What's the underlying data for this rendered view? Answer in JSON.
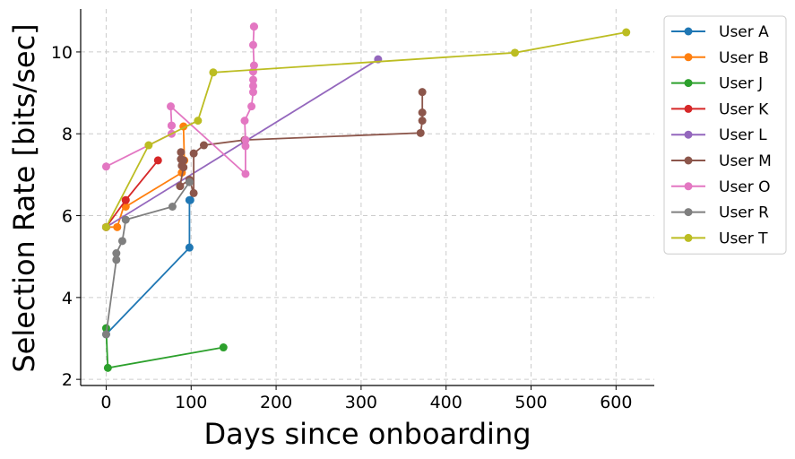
{
  "chart_data": {
    "type": "line",
    "xlabel": "Days since onboarding",
    "ylabel": "Selection Rate [bits/sec]",
    "xlim": [
      -30,
      645
    ],
    "ylim": [
      1.85,
      11.05
    ],
    "x_ticks": [
      0,
      100,
      200,
      300,
      400,
      500,
      600
    ],
    "y_ticks": [
      2,
      4,
      6,
      8,
      10
    ],
    "grid": true,
    "legend_position": "outside-right",
    "series": [
      {
        "name": "User A",
        "color": "#1f77b4",
        "x": [
          0,
          98,
          98,
          99
        ],
        "y": [
          3.1,
          5.22,
          6.38,
          6.38
        ]
      },
      {
        "name": "User B",
        "color": "#ff7f0e",
        "x": [
          0,
          13,
          23,
          23,
          89,
          91,
          92,
          91
        ],
        "y": [
          5.72,
          5.72,
          6.38,
          6.22,
          7.05,
          7.35,
          7.35,
          8.18
        ]
      },
      {
        "name": "User J",
        "color": "#2ca02c",
        "x": [
          0,
          2,
          138
        ],
        "y": [
          3.25,
          2.28,
          2.78
        ]
      },
      {
        "name": "User K",
        "color": "#d62728",
        "x": [
          0,
          23,
          61
        ],
        "y": [
          5.72,
          6.38,
          7.35
        ]
      },
      {
        "name": "User L",
        "color": "#9467bd",
        "x": [
          0,
          320
        ],
        "y": [
          5.72,
          9.82
        ]
      },
      {
        "name": "User M",
        "color": "#8c564b",
        "x": [
          88,
          88,
          89,
          90,
          91,
          91,
          87,
          98,
          103,
          103,
          115,
          163,
          370,
          372,
          372,
          372
        ],
        "y": [
          7.55,
          7.38,
          7.22,
          7.35,
          7.35,
          7.18,
          6.72,
          6.88,
          6.55,
          7.52,
          7.72,
          7.85,
          8.02,
          8.32,
          8.52,
          9.02
        ]
      },
      {
        "name": "User O",
        "color": "#e377c2",
        "x": [
          0,
          77,
          77,
          77,
          76,
          164,
          164,
          164,
          163,
          171,
          173,
          173,
          173,
          173,
          174,
          173,
          174,
          174
        ],
        "y": [
          7.2,
          8.0,
          8.2,
          8.2,
          8.67,
          7.02,
          7.7,
          7.85,
          8.32,
          8.67,
          9.02,
          9.17,
          9.32,
          9.52,
          9.67,
          10.17,
          10.62,
          10.62
        ]
      },
      {
        "name": "User R",
        "color": "#7f7f7f",
        "x": [
          0,
          12,
          12,
          19,
          23,
          78,
          98,
          98
        ],
        "y": [
          3.1,
          4.92,
          5.08,
          5.38,
          5.9,
          6.22,
          6.82,
          6.82
        ]
      },
      {
        "name": "User T",
        "color": "#bcbd22",
        "x": [
          0,
          50,
          108,
          126,
          481,
          612
        ],
        "y": [
          5.72,
          7.72,
          8.32,
          9.5,
          9.98,
          10.48
        ]
      }
    ]
  }
}
